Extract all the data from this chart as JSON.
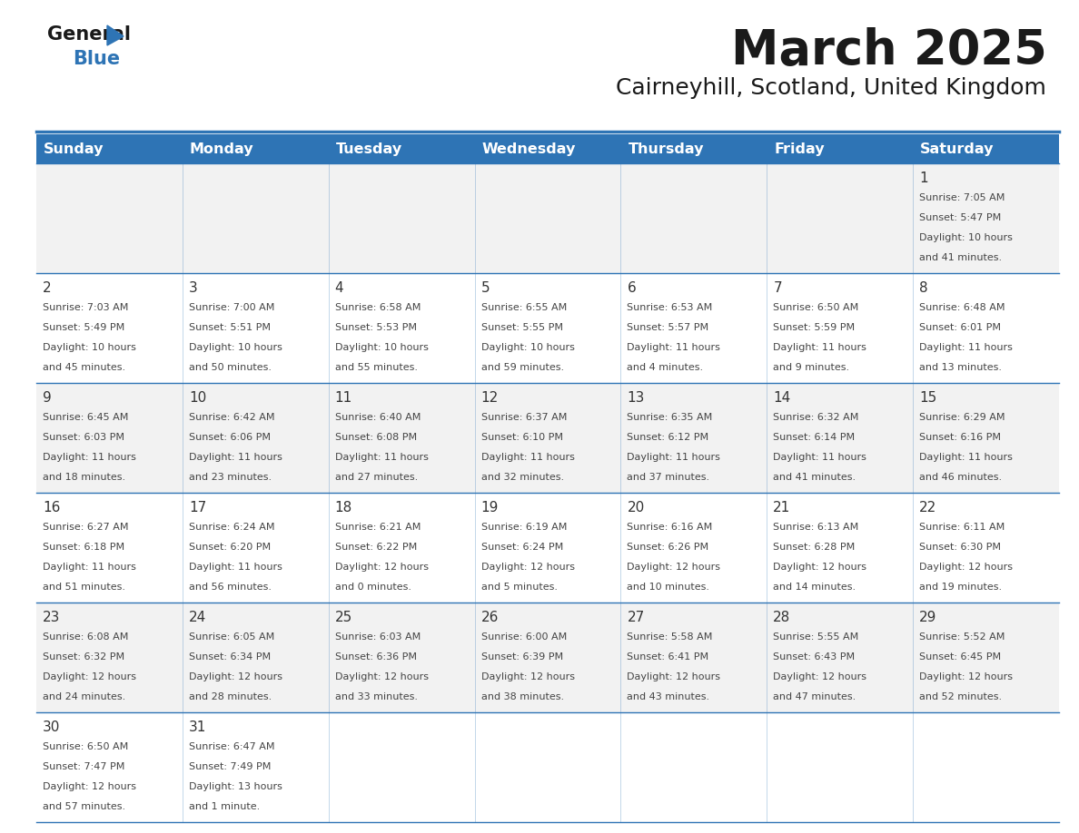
{
  "title": "March 2025",
  "subtitle": "Cairneyhill, Scotland, United Kingdom",
  "days_of_week": [
    "Sunday",
    "Monday",
    "Tuesday",
    "Wednesday",
    "Thursday",
    "Friday",
    "Saturday"
  ],
  "header_bg": "#2E74B5",
  "header_text": "#FFFFFF",
  "row_bg_odd": "#F2F2F2",
  "row_bg_even": "#FFFFFF",
  "border_color": "#2E74B5",
  "day_number_color": "#333333",
  "cell_text_color": "#444444",
  "calendar_data": [
    [
      null,
      null,
      null,
      null,
      null,
      null,
      {
        "day": "1",
        "sunrise": "7:05 AM",
        "sunset": "5:47 PM",
        "daylight": "10 hours",
        "daylight2": "and 41 minutes."
      }
    ],
    [
      {
        "day": "2",
        "sunrise": "7:03 AM",
        "sunset": "5:49 PM",
        "daylight": "10 hours",
        "daylight2": "and 45 minutes."
      },
      {
        "day": "3",
        "sunrise": "7:00 AM",
        "sunset": "5:51 PM",
        "daylight": "10 hours",
        "daylight2": "and 50 minutes."
      },
      {
        "day": "4",
        "sunrise": "6:58 AM",
        "sunset": "5:53 PM",
        "daylight": "10 hours",
        "daylight2": "and 55 minutes."
      },
      {
        "day": "5",
        "sunrise": "6:55 AM",
        "sunset": "5:55 PM",
        "daylight": "10 hours",
        "daylight2": "and 59 minutes."
      },
      {
        "day": "6",
        "sunrise": "6:53 AM",
        "sunset": "5:57 PM",
        "daylight": "11 hours",
        "daylight2": "and 4 minutes."
      },
      {
        "day": "7",
        "sunrise": "6:50 AM",
        "sunset": "5:59 PM",
        "daylight": "11 hours",
        "daylight2": "and 9 minutes."
      },
      {
        "day": "8",
        "sunrise": "6:48 AM",
        "sunset": "6:01 PM",
        "daylight": "11 hours",
        "daylight2": "and 13 minutes."
      }
    ],
    [
      {
        "day": "9",
        "sunrise": "6:45 AM",
        "sunset": "6:03 PM",
        "daylight": "11 hours",
        "daylight2": "and 18 minutes."
      },
      {
        "day": "10",
        "sunrise": "6:42 AM",
        "sunset": "6:06 PM",
        "daylight": "11 hours",
        "daylight2": "and 23 minutes."
      },
      {
        "day": "11",
        "sunrise": "6:40 AM",
        "sunset": "6:08 PM",
        "daylight": "11 hours",
        "daylight2": "and 27 minutes."
      },
      {
        "day": "12",
        "sunrise": "6:37 AM",
        "sunset": "6:10 PM",
        "daylight": "11 hours",
        "daylight2": "and 32 minutes."
      },
      {
        "day": "13",
        "sunrise": "6:35 AM",
        "sunset": "6:12 PM",
        "daylight": "11 hours",
        "daylight2": "and 37 minutes."
      },
      {
        "day": "14",
        "sunrise": "6:32 AM",
        "sunset": "6:14 PM",
        "daylight": "11 hours",
        "daylight2": "and 41 minutes."
      },
      {
        "day": "15",
        "sunrise": "6:29 AM",
        "sunset": "6:16 PM",
        "daylight": "11 hours",
        "daylight2": "and 46 minutes."
      }
    ],
    [
      {
        "day": "16",
        "sunrise": "6:27 AM",
        "sunset": "6:18 PM",
        "daylight": "11 hours",
        "daylight2": "and 51 minutes."
      },
      {
        "day": "17",
        "sunrise": "6:24 AM",
        "sunset": "6:20 PM",
        "daylight": "11 hours",
        "daylight2": "and 56 minutes."
      },
      {
        "day": "18",
        "sunrise": "6:21 AM",
        "sunset": "6:22 PM",
        "daylight": "12 hours",
        "daylight2": "and 0 minutes."
      },
      {
        "day": "19",
        "sunrise": "6:19 AM",
        "sunset": "6:24 PM",
        "daylight": "12 hours",
        "daylight2": "and 5 minutes."
      },
      {
        "day": "20",
        "sunrise": "6:16 AM",
        "sunset": "6:26 PM",
        "daylight": "12 hours",
        "daylight2": "and 10 minutes."
      },
      {
        "day": "21",
        "sunrise": "6:13 AM",
        "sunset": "6:28 PM",
        "daylight": "12 hours",
        "daylight2": "and 14 minutes."
      },
      {
        "day": "22",
        "sunrise": "6:11 AM",
        "sunset": "6:30 PM",
        "daylight": "12 hours",
        "daylight2": "and 19 minutes."
      }
    ],
    [
      {
        "day": "23",
        "sunrise": "6:08 AM",
        "sunset": "6:32 PM",
        "daylight": "12 hours",
        "daylight2": "and 24 minutes."
      },
      {
        "day": "24",
        "sunrise": "6:05 AM",
        "sunset": "6:34 PM",
        "daylight": "12 hours",
        "daylight2": "and 28 minutes."
      },
      {
        "day": "25",
        "sunrise": "6:03 AM",
        "sunset": "6:36 PM",
        "daylight": "12 hours",
        "daylight2": "and 33 minutes."
      },
      {
        "day": "26",
        "sunrise": "6:00 AM",
        "sunset": "6:39 PM",
        "daylight": "12 hours",
        "daylight2": "and 38 minutes."
      },
      {
        "day": "27",
        "sunrise": "5:58 AM",
        "sunset": "6:41 PM",
        "daylight": "12 hours",
        "daylight2": "and 43 minutes."
      },
      {
        "day": "28",
        "sunrise": "5:55 AM",
        "sunset": "6:43 PM",
        "daylight": "12 hours",
        "daylight2": "and 47 minutes."
      },
      {
        "day": "29",
        "sunrise": "5:52 AM",
        "sunset": "6:45 PM",
        "daylight": "12 hours",
        "daylight2": "and 52 minutes."
      }
    ],
    [
      {
        "day": "30",
        "sunrise": "6:50 AM",
        "sunset": "7:47 PM",
        "daylight": "12 hours",
        "daylight2": "and 57 minutes."
      },
      {
        "day": "31",
        "sunrise": "6:47 AM",
        "sunset": "7:49 PM",
        "daylight": "13 hours",
        "daylight2": "and 1 minute."
      },
      null,
      null,
      null,
      null,
      null
    ]
  ]
}
